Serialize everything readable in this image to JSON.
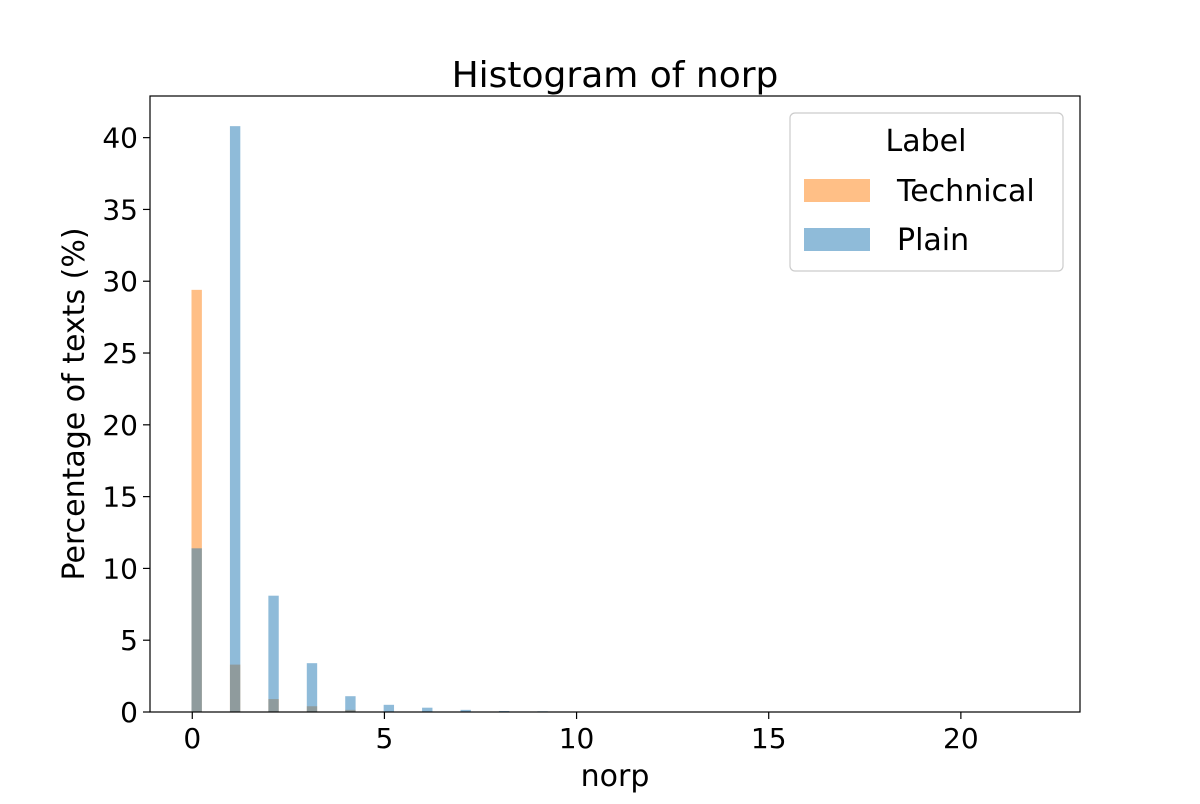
{
  "chart_data": {
    "type": "bar",
    "title": "Histogram of norp",
    "xlabel": "norp",
    "ylabel": "Percentage of texts (%)",
    "xlim": [
      -1.1,
      23.1
    ],
    "ylim": [
      0,
      42.9
    ],
    "xticks": [
      0,
      5,
      10,
      15,
      20
    ],
    "yticks": [
      0,
      5,
      10,
      15,
      20,
      25,
      30,
      35,
      40
    ],
    "grid": false,
    "bin_width": 0.25,
    "legend": {
      "title": "Label",
      "placement": "top-right"
    },
    "series": [
      {
        "name": "Technical",
        "color": "#ff7f0e",
        "alpha": 0.5,
        "bins": [
          {
            "x": 0,
            "value": 29.4
          },
          {
            "x": 1,
            "value": 3.3
          },
          {
            "x": 2,
            "value": 0.9
          },
          {
            "x": 3,
            "value": 0.4
          },
          {
            "x": 4,
            "value": 0.15
          }
        ]
      },
      {
        "name": "Plain",
        "color": "#1f77b4",
        "alpha": 0.5,
        "bins": [
          {
            "x": 0,
            "value": 11.4
          },
          {
            "x": 1,
            "value": 40.8
          },
          {
            "x": 2,
            "value": 8.1
          },
          {
            "x": 3,
            "value": 3.4
          },
          {
            "x": 4,
            "value": 1.1
          },
          {
            "x": 5,
            "value": 0.5
          },
          {
            "x": 6,
            "value": 0.3
          },
          {
            "x": 7,
            "value": 0.15
          },
          {
            "x": 8,
            "value": 0.07
          },
          {
            "x": 9,
            "value": 0.05
          }
        ]
      }
    ]
  }
}
